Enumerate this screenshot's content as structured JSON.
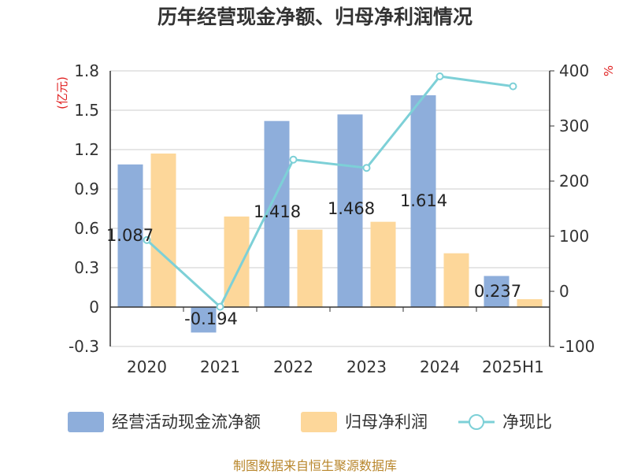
{
  "chart_data": {
    "type": "bar",
    "title": "历年经营现金净额、归母净利润情况",
    "categories": [
      "2020",
      "2021",
      "2022",
      "2023",
      "2024",
      "2025H1"
    ],
    "left_unit": "(亿元)",
    "right_unit": "%",
    "ylim_left": [
      -0.3,
      1.8
    ],
    "left_ticks": [
      "1.8",
      "1.5",
      "1.2",
      "0.9",
      "0.6",
      "0.3",
      "0",
      "-0.3"
    ],
    "ylim_right": [
      -100,
      400
    ],
    "right_ticks": [
      "400",
      "300",
      "200",
      "100",
      "0",
      "-100"
    ],
    "series": [
      {
        "name": "经营活动现金流净额",
        "type": "bar",
        "axis": "left",
        "values": [
          1.087,
          -0.194,
          1.418,
          1.468,
          1.614,
          0.237
        ],
        "labels": [
          "1.087",
          "-0.194",
          "1.418",
          "1.468",
          "1.614",
          "0.237"
        ]
      },
      {
        "name": "归母净利润",
        "type": "bar",
        "axis": "left",
        "values": [
          1.17,
          0.69,
          0.59,
          0.65,
          0.41,
          0.06
        ]
      },
      {
        "name": "净现比",
        "type": "line",
        "axis": "right",
        "values": [
          93,
          -28,
          239,
          224,
          390,
          372
        ]
      }
    ],
    "colors": {
      "bar1": "#8eaedb",
      "bar2": "#fdd79a",
      "line": "#7dd0d7"
    },
    "grid": true,
    "legend": "bottom"
  },
  "source": "制图数据来自恒生聚源数据库"
}
